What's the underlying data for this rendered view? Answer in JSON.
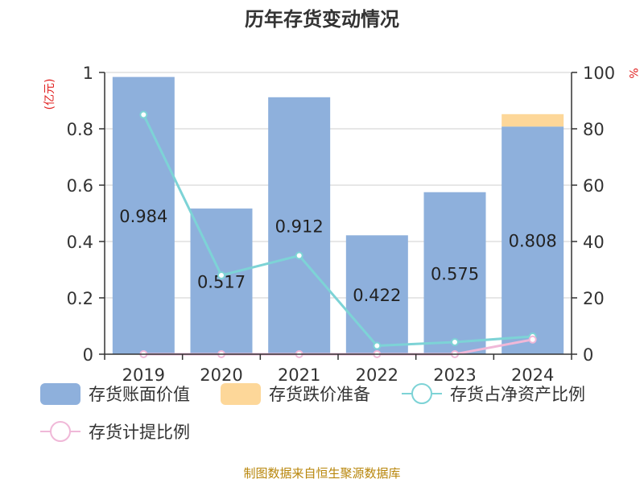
{
  "title": "历年存货变动情况",
  "source": "制图数据来自恒生聚源数据库",
  "chart_data": {
    "type": "bar",
    "categories": [
      "2019",
      "2020",
      "2021",
      "2022",
      "2023",
      "2024"
    ],
    "left_axis": {
      "unit": "(亿元)",
      "ylim": [
        0,
        1
      ],
      "ticks": [
        "0",
        "0.2",
        "0.4",
        "0.6",
        "0.8",
        "1"
      ],
      "tick_values": [
        0,
        0.2,
        0.4,
        0.6,
        0.8,
        1
      ]
    },
    "right_axis": {
      "unit": "%",
      "ylim": [
        0,
        100
      ],
      "ticks": [
        "0",
        "20",
        "40",
        "60",
        "80",
        "100"
      ],
      "tick_values": [
        0,
        20,
        40,
        60,
        80,
        100
      ]
    },
    "grid": true,
    "legend_position": "bottom",
    "series": [
      {
        "name": "存货账面价值",
        "type": "bar",
        "axis": "left",
        "color": "#8eb0dc",
        "values": [
          0.984,
          0.517,
          0.912,
          0.422,
          0.575,
          0.808
        ],
        "labels": [
          "0.984",
          "0.517",
          "0.912",
          "0.422",
          "0.575",
          "0.808"
        ]
      },
      {
        "name": "存货跌价准备",
        "type": "bar-stacked",
        "axis": "left",
        "color": "#fdd799",
        "values": [
          0,
          0,
          0,
          0,
          0,
          0.044
        ]
      },
      {
        "name": "存货占净资产比例",
        "type": "line",
        "axis": "right",
        "color": "#7dd3d6",
        "values": [
          85,
          28,
          35,
          3,
          4.3,
          6.3
        ]
      },
      {
        "name": "存货计提比例",
        "type": "line",
        "axis": "right",
        "color": "#f0b8d8",
        "values": [
          0,
          0,
          0,
          0,
          0,
          5.2
        ]
      }
    ]
  }
}
